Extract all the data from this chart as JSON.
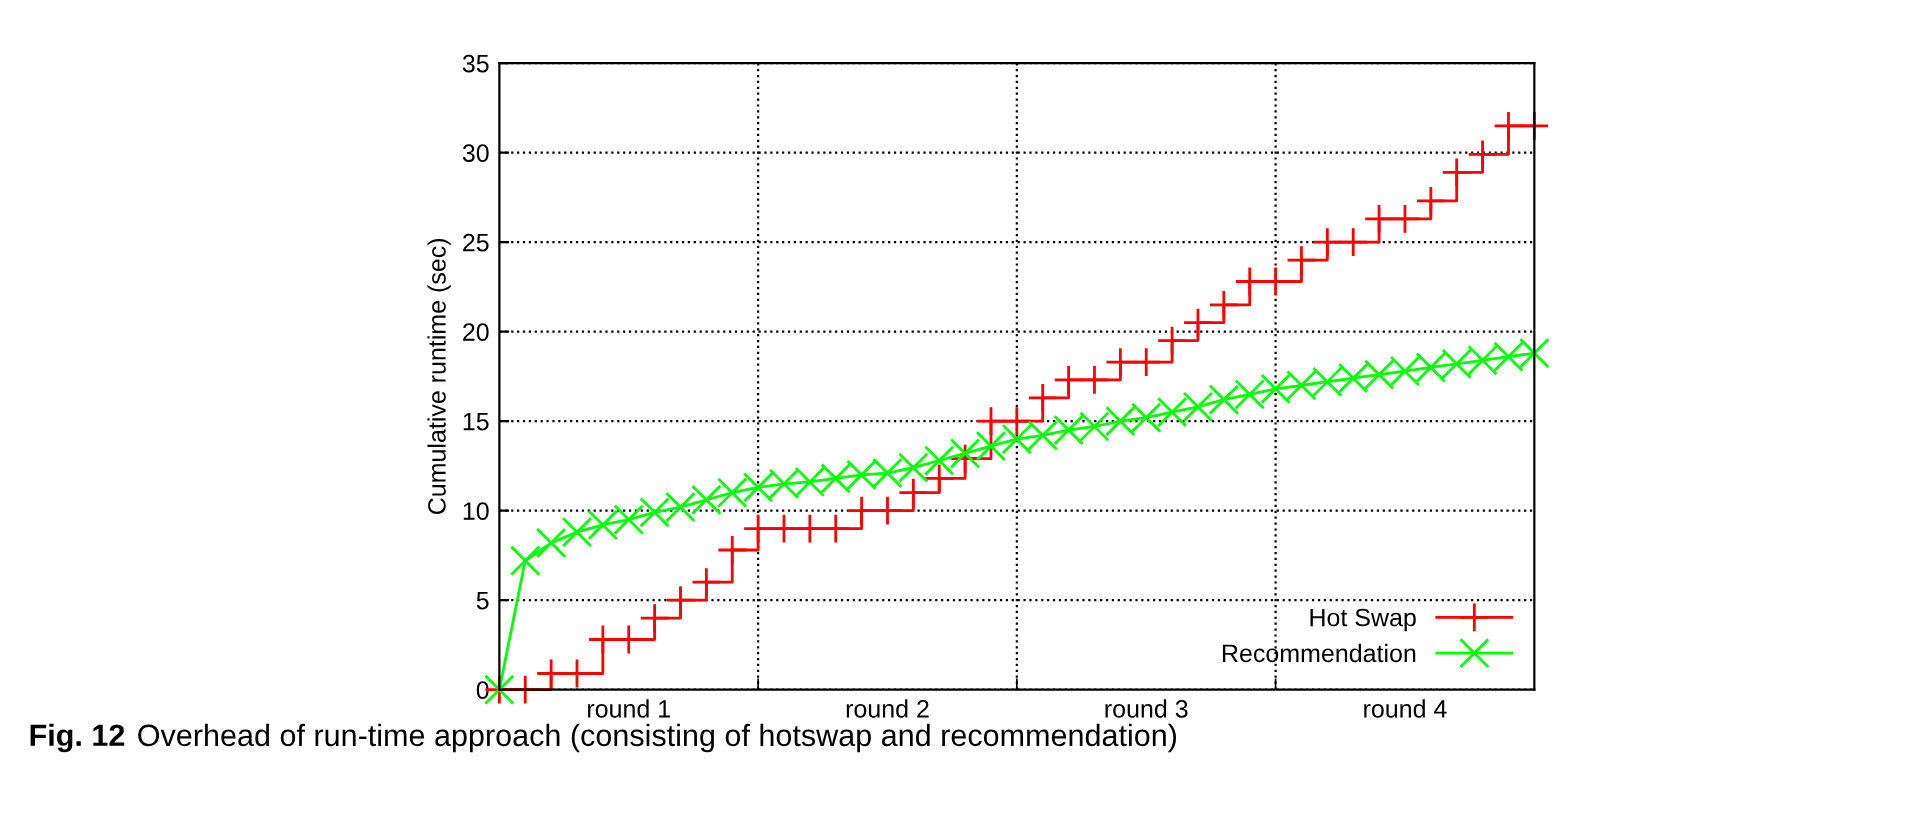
{
  "chart_data": {
    "type": "line",
    "ylabel": "Cumulative runtime (sec)",
    "annotations": [
      "Fig. 12",
      "Overhead of run-time approach (consisting of hotswap and recommendation)"
    ],
    "categories": [
      null,
      null,
      null,
      null,
      null,
      "round 1",
      null,
      null,
      null,
      null,
      null,
      null,
      null,
      null,
      null,
      "round 2",
      null,
      null,
      null,
      null,
      null,
      null,
      null,
      null,
      null,
      "round 3",
      null,
      null,
      null,
      null,
      null,
      null,
      null,
      null,
      null,
      "round 4",
      null,
      null,
      null,
      null,
      null
    ],
    "ylim": [
      0,
      35
    ],
    "yticks": [
      0,
      5,
      10,
      15,
      20,
      25,
      30,
      35
    ],
    "grid": true,
    "legend": "bottom right",
    "line_style": "solid",
    "series": [
      {
        "name": "Hot Swap",
        "type": "step",
        "color": "#ff0000",
        "marker": "plus",
        "values": [
          0,
          0,
          0.9,
          0.9,
          2.8,
          2.8,
          4.0,
          5.0,
          6.0,
          7.8,
          9.0,
          9.0,
          9.0,
          9.0,
          10.0,
          10.0,
          11.0,
          11.8,
          12.9,
          15.0,
          15.0,
          16.3,
          17.3,
          17.3,
          18.3,
          18.3,
          19.5,
          20.5,
          21.5,
          22.8,
          22.8,
          24.0,
          25.0,
          25.0,
          26.3,
          26.3,
          27.3,
          28.9,
          29.9,
          31.5,
          31.5
        ]
      },
      {
        "name": "Recommendation",
        "color": "#00ff00",
        "marker": "cross",
        "values": [
          0,
          7.2,
          8.2,
          8.8,
          9.2,
          9.5,
          9.9,
          10.2,
          10.6,
          11.0,
          11.3,
          11.5,
          11.6,
          11.8,
          12.0,
          12.1,
          12.4,
          12.8,
          13.2,
          13.6,
          14.0,
          14.2,
          14.5,
          14.7,
          15.0,
          15.2,
          15.5,
          15.8,
          16.2,
          16.5,
          16.8,
          17.0,
          17.2,
          17.4,
          17.6,
          17.8,
          18.0,
          18.2,
          18.4,
          18.6,
          18.8
        ]
      }
    ]
  }
}
